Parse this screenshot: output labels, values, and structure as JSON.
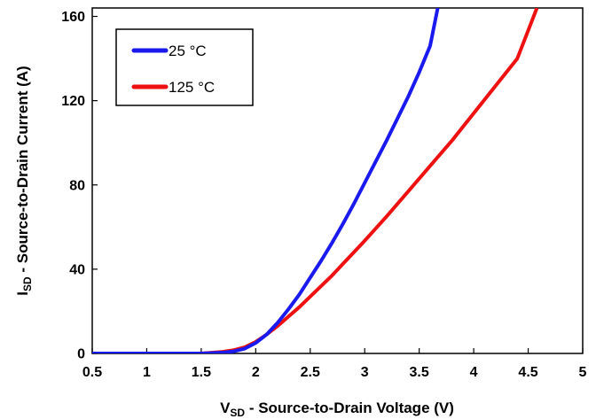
{
  "chart_data": {
    "type": "line",
    "xlabel_main": "V",
    "xlabel_sub": "SD",
    "xlabel_rest": " - Source-to-Drain Voltage (V)",
    "ylabel_main": "I",
    "ylabel_sub": "SD",
    "ylabel_rest": " - Source-to-Drain Current (A)",
    "xlim": [
      0.5,
      5
    ],
    "ylim": [
      0,
      164
    ],
    "x_ticks": [
      "0.5",
      "1",
      "1.5",
      "2",
      "2.5",
      "3",
      "3.5",
      "4",
      "4.5",
      "5"
    ],
    "y_ticks": [
      "0",
      "40",
      "80",
      "120",
      "160"
    ],
    "grid": false,
    "legend_position": "top-left",
    "series": [
      {
        "name": "25 °C",
        "color": "#1a1aee",
        "points": [
          [
            0.5,
            0
          ],
          [
            1.5,
            0
          ],
          [
            1.7,
            0.4
          ],
          [
            1.8,
            1.0
          ],
          [
            1.9,
            2.3
          ],
          [
            2.0,
            5.0
          ],
          [
            2.1,
            9.0
          ],
          [
            2.2,
            14.5
          ],
          [
            2.3,
            21.0
          ],
          [
            2.4,
            28.0
          ],
          [
            2.5,
            36.0
          ],
          [
            2.6,
            44.0
          ],
          [
            2.7,
            52.5
          ],
          [
            2.8,
            61.5
          ],
          [
            2.9,
            71.0
          ],
          [
            3.0,
            81.0
          ],
          [
            3.1,
            91.0
          ],
          [
            3.2,
            101.0
          ],
          [
            3.3,
            111.5
          ],
          [
            3.4,
            122.0
          ],
          [
            3.5,
            133.5
          ],
          [
            3.6,
            146.0
          ],
          [
            3.67,
            164.0
          ]
        ]
      },
      {
        "name": "125 °C",
        "color": "#ee1111",
        "points": [
          [
            0.5,
            0
          ],
          [
            1.5,
            0
          ],
          [
            1.7,
            0.8
          ],
          [
            1.8,
            1.6
          ],
          [
            1.9,
            3.0
          ],
          [
            2.0,
            5.5
          ],
          [
            2.1,
            9.0
          ],
          [
            2.2,
            13.0
          ],
          [
            2.3,
            17.5
          ],
          [
            2.4,
            22.0
          ],
          [
            2.5,
            27.0
          ],
          [
            2.6,
            32.0
          ],
          [
            2.7,
            37.0
          ],
          [
            2.8,
            42.5
          ],
          [
            2.9,
            48.0
          ],
          [
            3.0,
            53.5
          ],
          [
            3.2,
            65.0
          ],
          [
            3.4,
            77.0
          ],
          [
            3.6,
            89.0
          ],
          [
            3.8,
            101.0
          ],
          [
            4.0,
            114.0
          ],
          [
            4.2,
            127.0
          ],
          [
            4.4,
            140.0
          ],
          [
            4.58,
            164.0
          ]
        ]
      }
    ]
  }
}
